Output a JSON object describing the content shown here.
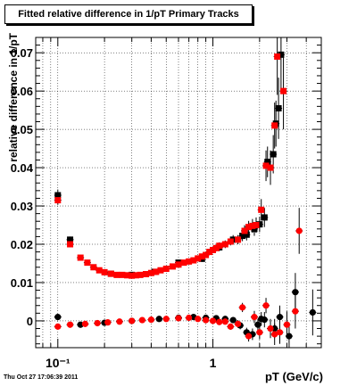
{
  "title": "Fitted relative difference in 1/pT  Primary Tracks",
  "timestamp": "Thu Oct 27 17:06:39 2011",
  "chart_data": {
    "type": "scatter",
    "title": "Fitted relative difference in 1/pT  Primary Tracks",
    "xlabel": "pT (GeV/c)",
    "ylabel": "relative difference in 1/pT",
    "x_scale": "log",
    "xlim": [
      0.072,
      5.0
    ],
    "ylim": [
      -0.007,
      0.074
    ],
    "x_tick_labels": [
      {
        "value": 0.1,
        "label": "10⁻¹"
      },
      {
        "value": 1,
        "label": "1"
      }
    ],
    "y_ticks": [
      0,
      0.01,
      0.02,
      0.03,
      0.04,
      0.05,
      0.06,
      0.07
    ],
    "y_tick_labels": [
      "0",
      "0.01",
      "0.02",
      "0.03",
      "0.04",
      "0.05",
      "0.06",
      "0.07"
    ],
    "grid": true,
    "colors": {
      "black_series": "#000000",
      "red_series": "#ff0000"
    },
    "series": [
      {
        "marker": "square",
        "color": "#000000",
        "points": [
          {
            "x": 0.1,
            "y": 0.0328,
            "ey": 0.0015
          },
          {
            "x": 0.12,
            "y": 0.0212,
            "ey": 0.0008
          },
          {
            "x": 0.22,
            "y": 0.0123,
            "ey": 0.0006
          },
          {
            "x": 0.3,
            "y": 0.012,
            "ey": 0.0006
          },
          {
            "x": 0.42,
            "y": 0.0128,
            "ey": 0.0006
          },
          {
            "x": 0.6,
            "y": 0.0152,
            "ey": 0.0007
          },
          {
            "x": 0.85,
            "y": 0.0162,
            "ey": 0.0008
          },
          {
            "x": 1.1,
            "y": 0.0192,
            "ey": 0.001
          },
          {
            "x": 1.35,
            "y": 0.0212,
            "ey": 0.0012
          },
          {
            "x": 1.55,
            "y": 0.0222,
            "ey": 0.0014
          },
          {
            "x": 1.65,
            "y": 0.0225,
            "ey": 0.0015
          },
          {
            "x": 1.85,
            "y": 0.024,
            "ey": 0.0018
          },
          {
            "x": 2.0,
            "y": 0.0252,
            "ey": 0.002
          },
          {
            "x": 2.15,
            "y": 0.027,
            "ey": 0.0025
          },
          {
            "x": 2.25,
            "y": 0.0415,
            "ey": 0.004
          },
          {
            "x": 2.45,
            "y": 0.0435,
            "ey": 0.005
          },
          {
            "x": 2.55,
            "y": 0.0515,
            "ey": 0.006
          },
          {
            "x": 2.65,
            "y": 0.0555,
            "ey": 0.008
          },
          {
            "x": 2.75,
            "y": 0.0695,
            "ey": 0.01
          }
        ]
      },
      {
        "marker": "square",
        "color": "#ff0000",
        "points": [
          {
            "x": 0.1,
            "y": 0.0315,
            "ey": 0.0012
          },
          {
            "x": 0.12,
            "y": 0.02,
            "ey": 0.0008
          },
          {
            "x": 0.14,
            "y": 0.0165,
            "ey": 0.0006
          },
          {
            "x": 0.155,
            "y": 0.0152,
            "ey": 0.0005
          },
          {
            "x": 0.17,
            "y": 0.014,
            "ey": 0.0005
          },
          {
            "x": 0.185,
            "y": 0.0132,
            "ey": 0.0005
          },
          {
            "x": 0.2,
            "y": 0.0127,
            "ey": 0.0005
          },
          {
            "x": 0.22,
            "y": 0.0123,
            "ey": 0.0005
          },
          {
            "x": 0.24,
            "y": 0.012,
            "ey": 0.0005
          },
          {
            "x": 0.26,
            "y": 0.012,
            "ey": 0.0005
          },
          {
            "x": 0.28,
            "y": 0.0119,
            "ey": 0.0005
          },
          {
            "x": 0.3,
            "y": 0.0118,
            "ey": 0.0005
          },
          {
            "x": 0.32,
            "y": 0.0119,
            "ey": 0.0005
          },
          {
            "x": 0.34,
            "y": 0.012,
            "ey": 0.0005
          },
          {
            "x": 0.37,
            "y": 0.0122,
            "ey": 0.0005
          },
          {
            "x": 0.4,
            "y": 0.0125,
            "ey": 0.0005
          },
          {
            "x": 0.43,
            "y": 0.0128,
            "ey": 0.0005
          },
          {
            "x": 0.46,
            "y": 0.0132,
            "ey": 0.0005
          },
          {
            "x": 0.5,
            "y": 0.0136,
            "ey": 0.0005
          },
          {
            "x": 0.55,
            "y": 0.0142,
            "ey": 0.0006
          },
          {
            "x": 0.6,
            "y": 0.0147,
            "ey": 0.0006
          },
          {
            "x": 0.65,
            "y": 0.0152,
            "ey": 0.0006
          },
          {
            "x": 0.7,
            "y": 0.0155,
            "ey": 0.0006
          },
          {
            "x": 0.75,
            "y": 0.0158,
            "ey": 0.0007
          },
          {
            "x": 0.8,
            "y": 0.0163,
            "ey": 0.0007
          },
          {
            "x": 0.85,
            "y": 0.0168,
            "ey": 0.0007
          },
          {
            "x": 0.9,
            "y": 0.0172,
            "ey": 0.0007
          },
          {
            "x": 0.95,
            "y": 0.018,
            "ey": 0.0008
          },
          {
            "x": 1.0,
            "y": 0.0185,
            "ey": 0.0008
          },
          {
            "x": 1.05,
            "y": 0.019,
            "ey": 0.0008
          },
          {
            "x": 1.1,
            "y": 0.0196,
            "ey": 0.0009
          },
          {
            "x": 1.2,
            "y": 0.02,
            "ey": 0.001
          },
          {
            "x": 1.3,
            "y": 0.0207,
            "ey": 0.001
          },
          {
            "x": 1.45,
            "y": 0.0212,
            "ey": 0.0012
          },
          {
            "x": 1.6,
            "y": 0.0235,
            "ey": 0.0015
          },
          {
            "x": 1.7,
            "y": 0.0245,
            "ey": 0.0016
          },
          {
            "x": 1.8,
            "y": 0.0248,
            "ey": 0.0018
          },
          {
            "x": 1.9,
            "y": 0.025,
            "ey": 0.002
          },
          {
            "x": 2.05,
            "y": 0.029,
            "ey": 0.0028
          },
          {
            "x": 2.2,
            "y": 0.0405,
            "ey": 0.004
          },
          {
            "x": 2.35,
            "y": 0.04,
            "ey": 0.0045
          },
          {
            "x": 2.5,
            "y": 0.051,
            "ey": 0.006
          },
          {
            "x": 2.6,
            "y": 0.069,
            "ey": 0.01
          },
          {
            "x": 2.85,
            "y": 0.06,
            "ey": 0.01
          }
        ]
      },
      {
        "marker": "circle",
        "color": "#000000",
        "points": [
          {
            "x": 0.1,
            "y": 0.001,
            "ey": 0.0005
          },
          {
            "x": 0.14,
            "y": -0.001,
            "ey": 0.0004
          },
          {
            "x": 0.2,
            "y": -0.0005,
            "ey": 0.0003
          },
          {
            "x": 0.3,
            "y": 0.0,
            "ey": 0.0003
          },
          {
            "x": 0.45,
            "y": 0.0005,
            "ey": 0.0003
          },
          {
            "x": 0.6,
            "y": 0.0008,
            "ey": 0.0003
          },
          {
            "x": 0.75,
            "y": 0.001,
            "ey": 0.0004
          },
          {
            "x": 0.9,
            "y": 0.0008,
            "ey": 0.0004
          },
          {
            "x": 1.05,
            "y": 0.0007,
            "ey": 0.0005
          },
          {
            "x": 1.2,
            "y": 0.0005,
            "ey": 0.0006
          },
          {
            "x": 1.35,
            "y": 0.0002,
            "ey": 0.0008
          },
          {
            "x": 1.5,
            "y": -0.0012,
            "ey": 0.001
          },
          {
            "x": 1.65,
            "y": -0.003,
            "ey": 0.0012
          },
          {
            "x": 1.8,
            "y": -0.0035,
            "ey": 0.0015
          },
          {
            "x": 1.95,
            "y": -0.001,
            "ey": 0.0015
          },
          {
            "x": 2.05,
            "y": 0.0005,
            "ey": 0.0018
          },
          {
            "x": 2.15,
            "y": 0.0003,
            "ey": 0.002
          },
          {
            "x": 2.5,
            "y": -0.002,
            "ey": 0.0025
          },
          {
            "x": 2.7,
            "y": 0.001,
            "ey": 0.003
          },
          {
            "x": 3.1,
            "y": -0.004,
            "ey": 0.0035
          },
          {
            "x": 3.4,
            "y": 0.0075,
            "ey": 0.005
          },
          {
            "x": 4.4,
            "y": 0.0022,
            "ey": 0.006
          }
        ]
      },
      {
        "marker": "circle",
        "color": "#ff0000",
        "points": [
          {
            "x": 0.1,
            "y": -0.0015,
            "ey": 0.0004
          },
          {
            "x": 0.12,
            "y": -0.001,
            "ey": 0.0003
          },
          {
            "x": 0.15,
            "y": -0.0008,
            "ey": 0.0003
          },
          {
            "x": 0.18,
            "y": -0.0006,
            "ey": 0.0003
          },
          {
            "x": 0.21,
            "y": -0.0004,
            "ey": 0.0003
          },
          {
            "x": 0.25,
            "y": -0.0002,
            "ey": 0.0003
          },
          {
            "x": 0.3,
            "y": 0.0,
            "ey": 0.0003
          },
          {
            "x": 0.35,
            "y": 0.0002,
            "ey": 0.0003
          },
          {
            "x": 0.4,
            "y": 0.0003,
            "ey": 0.0003
          },
          {
            "x": 0.5,
            "y": 0.0005,
            "ey": 0.0003
          },
          {
            "x": 0.6,
            "y": 0.0007,
            "ey": 0.0003
          },
          {
            "x": 0.7,
            "y": 0.0008,
            "ey": 0.0004
          },
          {
            "x": 0.8,
            "y": 0.0005,
            "ey": 0.0004
          },
          {
            "x": 0.9,
            "y": 0.0002,
            "ey": 0.0004
          },
          {
            "x": 1.0,
            "y": 0.0,
            "ey": 0.0005
          },
          {
            "x": 1.1,
            "y": -0.0003,
            "ey": 0.0006
          },
          {
            "x": 1.2,
            "y": -0.0002,
            "ey": 0.0007
          },
          {
            "x": 1.3,
            "y": -0.0015,
            "ey": 0.0008
          },
          {
            "x": 1.45,
            "y": -0.0008,
            "ey": 0.001
          },
          {
            "x": 1.55,
            "y": 0.0035,
            "ey": 0.0012
          },
          {
            "x": 1.7,
            "y": -0.004,
            "ey": 0.0014
          },
          {
            "x": 1.85,
            "y": 0.001,
            "ey": 0.0016
          },
          {
            "x": 2.0,
            "y": -0.003,
            "ey": 0.0018
          },
          {
            "x": 2.2,
            "y": 0.004,
            "ey": 0.002
          },
          {
            "x": 2.35,
            "y": -0.002,
            "ey": 0.0025
          },
          {
            "x": 2.5,
            "y": -0.0035,
            "ey": 0.0028
          },
          {
            "x": 2.7,
            "y": -0.003,
            "ey": 0.003
          },
          {
            "x": 3.0,
            "y": -0.001,
            "ey": 0.0035
          },
          {
            "x": 3.4,
            "y": 0.0025,
            "ey": 0.0045
          },
          {
            "x": 3.6,
            "y": 0.0235,
            "ey": 0.006
          }
        ]
      }
    ]
  }
}
